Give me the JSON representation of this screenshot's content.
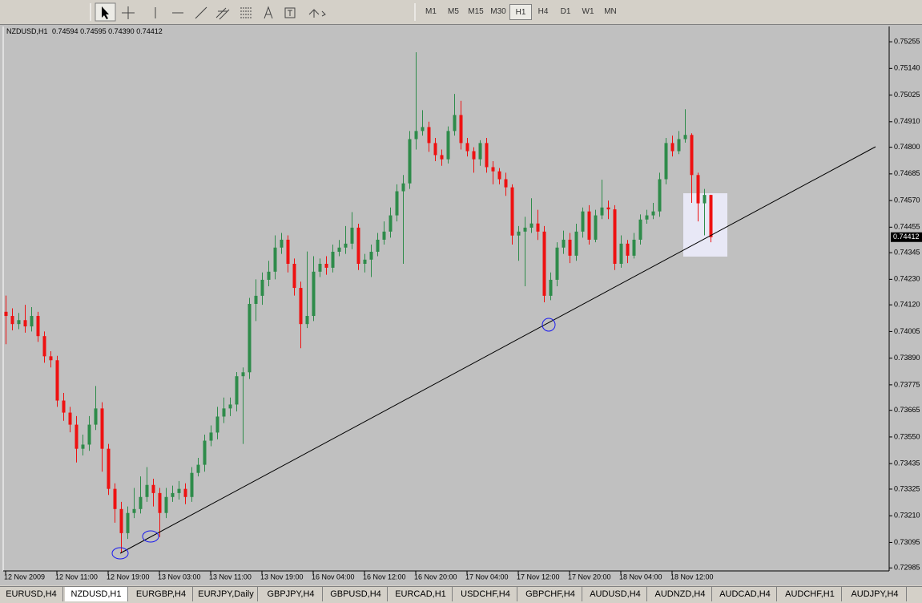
{
  "toolbar": {
    "timeframes": [
      "M1",
      "M5",
      "M15",
      "M30",
      "H1",
      "H4",
      "D1",
      "W1",
      "MN"
    ],
    "active_timeframe": "H1"
  },
  "chart_data": {
    "type": "candlestick",
    "symbol": "NZDUSD,H1",
    "ohlc_labels": [
      "0.74594",
      "0.74595",
      "0.74390",
      "0.74412"
    ],
    "categories": [
      "12 Nov 2009",
      null,
      null,
      null,
      null,
      null,
      null,
      null,
      "12 Nov 11:00",
      null,
      null,
      null,
      null,
      null,
      null,
      null,
      "12 Nov 19:00",
      null,
      null,
      null,
      null,
      null,
      null,
      null,
      "13 Nov 03:00",
      null,
      null,
      null,
      null,
      null,
      null,
      null,
      "13 Nov 11:00",
      null,
      null,
      null,
      null,
      null,
      null,
      null,
      "13 Nov 19:00",
      null,
      null,
      null,
      null,
      null,
      null,
      null,
      "16 Nov 04:00",
      null,
      null,
      null,
      null,
      null,
      null,
      null,
      "16 Nov 12:00",
      null,
      null,
      null,
      null,
      null,
      null,
      null,
      "16 Nov 20:00",
      null,
      null,
      null,
      null,
      null,
      null,
      null,
      "17 Nov 04:00",
      null,
      null,
      null,
      null,
      null,
      null,
      null,
      "17 Nov 12:00",
      null,
      null,
      null,
      null,
      null,
      null,
      null,
      "17 Nov 20:00",
      null,
      null,
      null,
      null,
      null,
      null,
      null,
      "18 Nov 04:00",
      null,
      null,
      null,
      null,
      null,
      null,
      null,
      "18 Nov 12:00",
      null,
      null,
      null,
      null,
      null,
      null
    ],
    "open": [
      0.7409,
      0.74072,
      0.74037,
      0.74054,
      0.74027,
      0.74072,
      0.73985,
      0.73898,
      0.73881,
      0.73707,
      0.73655,
      0.73603,
      0.73499,
      0.73517,
      0.73603,
      0.73673,
      0.73499,
      0.73326,
      0.73239,
      0.73135,
      0.73222,
      0.73239,
      0.73291,
      0.73343,
      0.73308,
      0.73222,
      0.73291,
      0.73308,
      0.73326,
      0.73291,
      0.73395,
      0.7343,
      0.73534,
      0.73569,
      0.73638,
      0.73673,
      0.7369,
      0.73812,
      0.73829,
      0.74124,
      0.74159,
      0.74228,
      0.74263,
      0.74367,
      0.74401,
      0.74297,
      0.74193,
      0.74037,
      0.74072,
      0.74263,
      0.74297,
      0.7428,
      0.74349,
      0.74367,
      0.74384,
      0.74453,
      0.74297,
      0.74315,
      0.74349,
      0.74401,
      0.74436,
      0.74506,
      0.7461,
      0.74644,
      0.74835,
      0.7487,
      0.74887,
      0.74818,
      0.74766,
      0.74748,
      0.7487,
      0.74939,
      0.74818,
      0.74783,
      0.74748,
      0.74818,
      0.74714,
      0.74696,
      0.74662,
      0.74627,
      0.74419,
      0.74436,
      0.74453,
      0.74471,
      0.74436,
      0.74159,
      0.74228,
      0.74367,
      0.74401,
      0.74332,
      0.74436,
      0.74523,
      0.74401,
      0.74506,
      0.7454,
      0.74532,
      0.74297,
      0.74384,
      0.74332,
      0.74401,
      0.74488,
      0.74506,
      0.74523,
      0.74662,
      0.74818,
      0.74783,
      0.74835,
      0.74853,
      0.7468,
      0.74558,
      0.74594
    ],
    "high": [
      0.7416,
      0.74105,
      0.74085,
      0.7412,
      0.7411,
      0.7409,
      0.74005,
      0.7392,
      0.739,
      0.7374,
      0.7368,
      0.7364,
      0.7356,
      0.7364,
      0.7377,
      0.737,
      0.7352,
      0.7335,
      0.7327,
      0.7325,
      0.7333,
      0.7338,
      0.7342,
      0.7337,
      0.7333,
      0.7333,
      0.7334,
      0.7336,
      0.7335,
      0.7342,
      0.7346,
      0.7356,
      0.736,
      0.7368,
      0.7372,
      0.7372,
      0.7383,
      0.7385,
      0.7415,
      0.7423,
      0.7426,
      0.7431,
      0.7442,
      0.7443,
      0.7442,
      0.7432,
      0.7422,
      0.7435,
      0.7433,
      0.7432,
      0.7433,
      0.7438,
      0.744,
      0.7446,
      0.7452,
      0.7447,
      0.7434,
      0.7438,
      0.7443,
      0.7448,
      0.7454,
      0.7464,
      0.7468,
      0.7487,
      0.7521,
      0.7496,
      0.7491,
      0.7484,
      0.7479,
      0.7489,
      0.7503,
      0.75,
      0.7484,
      0.748,
      0.7483,
      0.7484,
      0.7474,
      0.7471,
      0.7469,
      0.7464,
      0.7446,
      0.745,
      0.7458,
      0.7453,
      0.7446,
      0.7426,
      0.7439,
      0.7444,
      0.7443,
      0.7447,
      0.7454,
      0.7455,
      0.7453,
      0.7466,
      0.7457,
      0.7455,
      0.7442,
      0.744,
      0.7443,
      0.7451,
      0.7453,
      0.7456,
      0.7469,
      0.7484,
      0.7485,
      0.7487,
      0.74964,
      0.7486,
      0.7469,
      0.7462,
      0.74595
    ],
    "low": [
      0.7395,
      0.7401,
      0.74015,
      0.74,
      0.74005,
      0.7396,
      0.7387,
      0.7385,
      0.7368,
      0.7362,
      0.7357,
      0.7344,
      0.7347,
      0.7349,
      0.7358,
      0.734,
      0.733,
      0.7318,
      0.73048,
      0.7311,
      0.732,
      0.7322,
      0.7327,
      0.7325,
      0.73118,
      0.732,
      0.7327,
      0.7328,
      0.7326,
      0.7327,
      0.7338,
      0.734,
      0.7351,
      0.7354,
      0.7361,
      0.7364,
      0.7366,
      0.7352,
      0.738,
      0.7405,
      0.7412,
      0.742,
      0.7423,
      0.7434,
      0.7426,
      0.7416,
      0.73933,
      0.7402,
      0.7405,
      0.7424,
      0.7425,
      0.7426,
      0.7433,
      0.7434,
      0.7436,
      0.7427,
      0.7426,
      0.7424,
      0.7433,
      0.7438,
      0.7441,
      0.7448,
      0.74297,
      0.7462,
      0.7479,
      0.7485,
      0.7478,
      0.7474,
      0.7472,
      0.7473,
      0.7485,
      0.7479,
      0.7476,
      0.7469,
      0.7472,
      0.7469,
      0.7464,
      0.7464,
      0.7459,
      0.7438,
      0.7431,
      0.742,
      0.7443,
      0.744,
      0.74131,
      0.7414,
      0.742,
      0.7434,
      0.743,
      0.7431,
      0.7441,
      0.7438,
      0.7439,
      0.7449,
      0.7449,
      0.7427,
      0.7428,
      0.743,
      0.7432,
      0.7438,
      0.7447,
      0.7449,
      0.745,
      0.7464,
      0.7476,
      0.7477,
      0.7482,
      0.7456,
      0.7448,
      0.7442,
      0.7439
    ],
    "close": [
      0.74072,
      0.74037,
      0.74054,
      0.74027,
      0.74072,
      0.73985,
      0.73898,
      0.73881,
      0.73707,
      0.73655,
      0.73603,
      0.73499,
      0.73517,
      0.73603,
      0.73673,
      0.73499,
      0.73326,
      0.73239,
      0.73135,
      0.73222,
      0.73239,
      0.73291,
      0.73343,
      0.73308,
      0.73222,
      0.73291,
      0.73308,
      0.73326,
      0.73291,
      0.73395,
      0.7343,
      0.73534,
      0.73569,
      0.73638,
      0.73673,
      0.7369,
      0.73812,
      0.73829,
      0.74124,
      0.74159,
      0.74228,
      0.74263,
      0.74367,
      0.74401,
      0.74297,
      0.74193,
      0.74037,
      0.74072,
      0.74263,
      0.74297,
      0.7428,
      0.74349,
      0.74367,
      0.74384,
      0.74453,
      0.74297,
      0.74315,
      0.74349,
      0.74401,
      0.74436,
      0.74506,
      0.7461,
      0.74644,
      0.74835,
      0.7487,
      0.74887,
      0.74818,
      0.74766,
      0.74748,
      0.7487,
      0.74939,
      0.74818,
      0.74783,
      0.74748,
      0.74818,
      0.74714,
      0.74696,
      0.74662,
      0.74627,
      0.74419,
      0.74436,
      0.74453,
      0.74471,
      0.74436,
      0.74159,
      0.74228,
      0.74367,
      0.74401,
      0.74332,
      0.74436,
      0.74523,
      0.74401,
      0.74506,
      0.7454,
      0.74532,
      0.74297,
      0.74384,
      0.74332,
      0.74401,
      0.74488,
      0.74506,
      0.74523,
      0.74662,
      0.74818,
      0.74783,
      0.74835,
      0.74853,
      0.7468,
      0.74558,
      0.74594,
      0.74412
    ],
    "up_color": "#2e8b4a",
    "down_color": "#ee1111",
    "ylim": [
      0.72972,
      0.75321
    ],
    "yticks": [
      0.75255,
      {
        "value": 0.7514,
        "label": "0.75140"
      },
      0.75025,
      {
        "value": 0.7491,
        "label": "0.74910"
      },
      {
        "value": 0.748,
        "label": "0.74800"
      },
      0.74685,
      {
        "value": 0.7457,
        "label": "0.74570"
      },
      0.74455,
      0.74345,
      {
        "value": 0.7423,
        "label": "0.74230"
      },
      {
        "value": 0.7412,
        "label": "0.74120"
      },
      0.74005,
      {
        "value": 0.7389,
        "label": "0.73890"
      },
      0.73775,
      0.73665,
      {
        "value": 0.7355,
        "label": "0.73550"
      },
      0.73435,
      0.73325,
      {
        "value": 0.7321,
        "label": "0.73210"
      },
      0.73095,
      0.72985
    ]
  },
  "tabs": {
    "items": [
      "EURUSD,H4",
      "NZDUSD,H1",
      "EURGBP,H4",
      "EURJPY,Daily",
      "GBPJPY,H4",
      "GBPUSD,H4",
      "EURCAD,H1",
      "USDCHF,H4",
      "GBPCHF,H4",
      "AUDUSD,H4",
      "AUDNZD,H4",
      "AUDCAD,H4",
      "AUDCHF,H1",
      "AUDJPY,H4"
    ],
    "active": "NZDUSD,H1"
  }
}
